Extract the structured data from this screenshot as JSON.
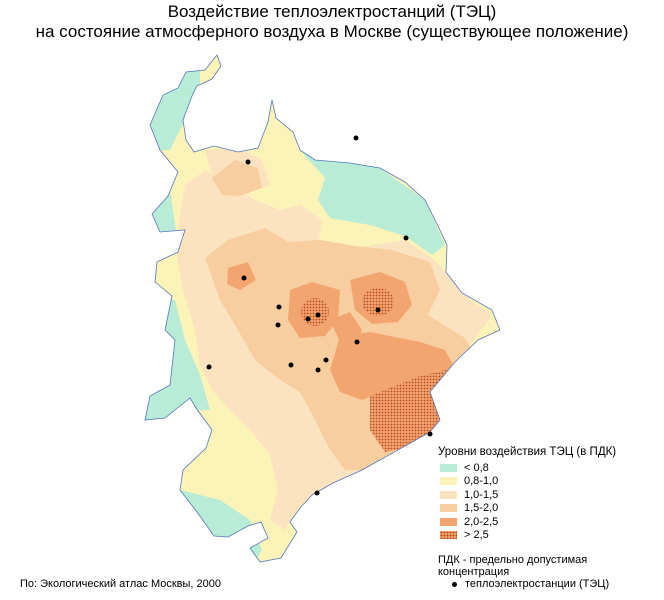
{
  "title": {
    "line1": "Воздействие теплоэлектростанций (ТЭЦ)",
    "line2": "на состояние атмосферного воздуха в Москве (существующее положение)"
  },
  "legend": {
    "title": "Уровни воздействия ТЭЦ (в ПДК)",
    "items": [
      {
        "label": "< 0,8",
        "color": "#b8ecd6"
      },
      {
        "label": "0,8-1,0",
        "color": "#fbf3b7"
      },
      {
        "label": "1,0-1,5",
        "color": "#fbe3bf"
      },
      {
        "label": "1,5-2,0",
        "color": "#f8cda0"
      },
      {
        "label": "2,0-2,5",
        "color": "#f3a56f"
      },
      {
        "label": "> 2,5",
        "color": "#f3a56f"
      }
    ]
  },
  "pdk_note": "ПДК - предельно допустимая концентрация",
  "tec_legend_label": "теплоэлектростанции (ТЭЦ)",
  "source": "По: Экологический атлас Москвы, 2000",
  "colors": {
    "lt08": "#b8ecd6",
    "l08_10": "#fbf3b7",
    "l10_15": "#fbe3bf",
    "l15_20": "#f8cda0",
    "l20_25": "#f3a56f",
    "gt25_dots": "#b84a1c",
    "boundary": "#5577bb",
    "tec_point": "#000000"
  }
}
